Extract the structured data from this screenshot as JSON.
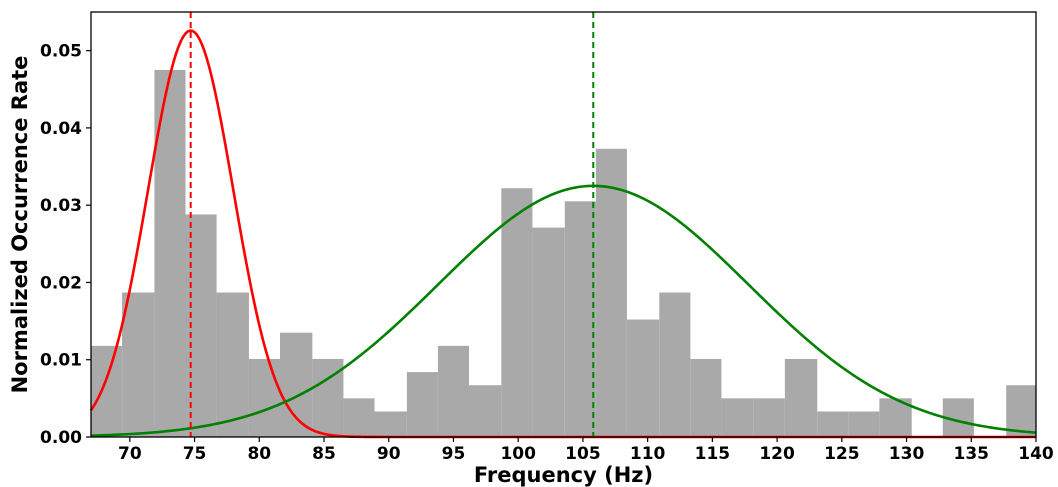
{
  "chart_data": {
    "type": "bar",
    "title": "",
    "xlabel": "Frequency (Hz)",
    "ylabel": "Normalized Occurrence Rate",
    "xlim": [
      67,
      140
    ],
    "ylim": [
      0,
      0.055
    ],
    "xticks": [
      "70",
      "75",
      "80",
      "85",
      "90",
      "95",
      "100",
      "105",
      "110",
      "115",
      "120",
      "125",
      "130",
      "135",
      "140"
    ],
    "yticks": [
      "0.00",
      "0.01",
      "0.02",
      "0.03",
      "0.04",
      "0.05"
    ],
    "grid": false,
    "legend": "none",
    "histogram": {
      "color": "#a9a9a9",
      "bins": [
        {
          "x0": 67.0,
          "x1": 69.4,
          "value": 0.0118
        },
        {
          "x0": 69.4,
          "x1": 71.9,
          "value": 0.0187
        },
        {
          "x0": 71.9,
          "x1": 74.3,
          "value": 0.0475
        },
        {
          "x0": 74.3,
          "x1": 76.7,
          "value": 0.0288
        },
        {
          "x0": 76.7,
          "x1": 79.2,
          "value": 0.0187
        },
        {
          "x0": 79.2,
          "x1": 81.6,
          "value": 0.0101
        },
        {
          "x0": 81.6,
          "x1": 84.1,
          "value": 0.0135
        },
        {
          "x0": 84.1,
          "x1": 86.5,
          "value": 0.0101
        },
        {
          "x0": 86.5,
          "x1": 88.9,
          "value": 0.005
        },
        {
          "x0": 88.9,
          "x1": 91.4,
          "value": 0.0033
        },
        {
          "x0": 91.4,
          "x1": 93.8,
          "value": 0.0084
        },
        {
          "x0": 93.8,
          "x1": 96.2,
          "value": 0.0118
        },
        {
          "x0": 96.2,
          "x1": 98.7,
          "value": 0.0067
        },
        {
          "x0": 98.7,
          "x1": 101.1,
          "value": 0.0322
        },
        {
          "x0": 101.1,
          "x1": 103.6,
          "value": 0.0271
        },
        {
          "x0": 103.6,
          "x1": 106.0,
          "value": 0.0305
        },
        {
          "x0": 106.0,
          "x1": 108.4,
          "value": 0.0373
        },
        {
          "x0": 108.4,
          "x1": 110.9,
          "value": 0.0152
        },
        {
          "x0": 110.9,
          "x1": 113.3,
          "value": 0.0187
        },
        {
          "x0": 113.3,
          "x1": 115.7,
          "value": 0.0101
        },
        {
          "x0": 115.7,
          "x1": 118.2,
          "value": 0.005
        },
        {
          "x0": 118.2,
          "x1": 120.6,
          "value": 0.005
        },
        {
          "x0": 120.6,
          "x1": 123.1,
          "value": 0.0101
        },
        {
          "x0": 123.1,
          "x1": 125.5,
          "value": 0.0033
        },
        {
          "x0": 125.5,
          "x1": 127.9,
          "value": 0.0033
        },
        {
          "x0": 127.9,
          "x1": 130.4,
          "value": 0.005
        },
        {
          "x0": 130.4,
          "x1": 132.8,
          "value": 0.0
        },
        {
          "x0": 132.8,
          "x1": 135.2,
          "value": 0.005
        },
        {
          "x0": 135.2,
          "x1": 137.7,
          "value": 0.0
        },
        {
          "x0": 137.7,
          "x1": 140.1,
          "value": 0.0067
        }
      ]
    },
    "series": [
      {
        "type": "line",
        "shape": "gaussian",
        "color": "#ff0000",
        "mean": 74.7,
        "sigma": 3.3,
        "peak": 0.0526,
        "x_range": [
          67,
          140
        ]
      },
      {
        "type": "line",
        "shape": "gaussian",
        "color": "#008000",
        "mean": 105.8,
        "sigma": 12.0,
        "peak": 0.0325,
        "x_range": [
          67,
          140
        ]
      }
    ],
    "vlines": [
      {
        "x": 74.7,
        "color": "#ff0000",
        "style": "dashed"
      },
      {
        "x": 105.8,
        "color": "#008000",
        "style": "dashed"
      }
    ]
  }
}
